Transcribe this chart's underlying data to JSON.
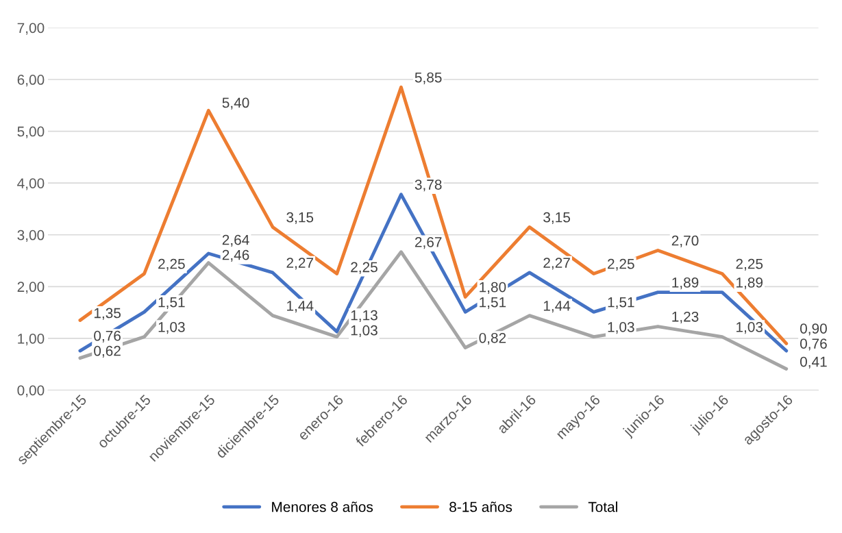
{
  "chart_data": {
    "type": "line",
    "categories": [
      "septiembre-15",
      "octubre-15",
      "noviembre-15",
      "diciembre-15",
      "enero-16",
      "febrero-16",
      "marzo-16",
      "abril-16",
      "mayo-16",
      "junio-16",
      "julio-16",
      "agosto-16"
    ],
    "series": [
      {
        "name": "Menores 8 años",
        "color": "#4472c4",
        "values": [
          0.76,
          1.51,
          2.64,
          2.27,
          1.13,
          3.78,
          1.51,
          2.27,
          1.51,
          1.89,
          1.89,
          0.76
        ],
        "value_labels": [
          "0,76",
          "1,51",
          "2,64",
          "2,27",
          "1,13",
          "3,78",
          "1,51",
          "2,27",
          "1,51",
          "1,89",
          "1,89",
          "0,76"
        ]
      },
      {
        "name": "8-15 años",
        "color": "#ed7d31",
        "values": [
          1.35,
          2.25,
          5.4,
          3.15,
          2.25,
          5.85,
          1.8,
          3.15,
          2.25,
          2.7,
          2.25,
          0.9
        ],
        "value_labels": [
          "1,35",
          "2,25",
          "5,40",
          "3,15",
          "2,25",
          "5,85",
          "1,80",
          "3,15",
          "2,25",
          "2,70",
          "2,25",
          "0,90"
        ]
      },
      {
        "name": "Total",
        "color": "#a5a5a5",
        "values": [
          0.62,
          1.03,
          2.46,
          1.44,
          1.03,
          2.67,
          0.82,
          1.44,
          1.03,
          1.23,
          1.03,
          0.41
        ],
        "value_labels": [
          "0,62",
          "1,03",
          "2,46",
          "1,44",
          "1,03",
          "2,67",
          "0,82",
          "1,44",
          "1,03",
          "1,23",
          "1,03",
          "0,41"
        ]
      }
    ],
    "ylim": [
      0,
      7
    ],
    "yticks": [
      {
        "value": 0,
        "label": "0,00"
      },
      {
        "value": 1,
        "label": "1,00"
      },
      {
        "value": 2,
        "label": "2,00"
      },
      {
        "value": 3,
        "label": "3,00"
      },
      {
        "value": 4,
        "label": "4,00"
      },
      {
        "value": 5,
        "label": "5,00"
      },
      {
        "value": 6,
        "label": "6,00"
      },
      {
        "value": 7,
        "label": "7,00"
      }
    ],
    "grid": "y",
    "legend": "bottom",
    "marker": "none",
    "line_style": "solid"
  }
}
